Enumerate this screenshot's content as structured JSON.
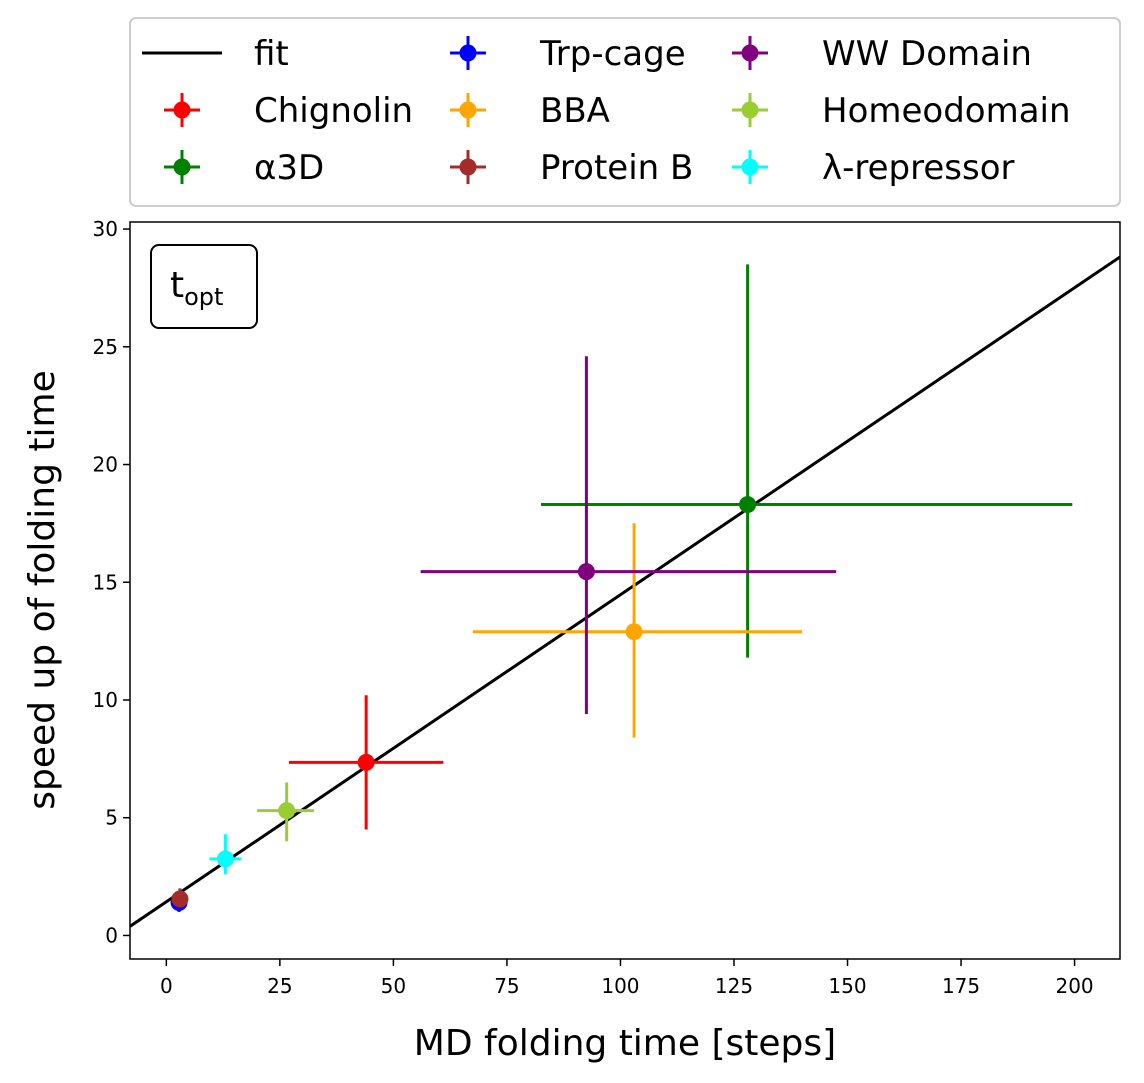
{
  "chart_data": {
    "type": "scatter",
    "title": "",
    "xlabel": "MD folding time [steps]",
    "ylabel": "speed up of folding time",
    "xlim": [
      -8,
      210
    ],
    "ylim": [
      -1,
      30.3
    ],
    "xticks": [
      0,
      25,
      50,
      75,
      100,
      125,
      150,
      175,
      200
    ],
    "yticks": [
      0,
      5,
      10,
      15,
      20,
      25,
      30
    ],
    "grid": false,
    "legend_position": "top, outside plot, 3 columns",
    "annotation": {
      "main": "t",
      "sub": "opt",
      "position": "top-left"
    },
    "fit": {
      "name": "fit",
      "color": "#000000",
      "slope": 0.1304,
      "intercept": 1.43
    },
    "series": [
      {
        "name": "Chignolin",
        "color": "#ff0000",
        "x": 44.0,
        "y": 7.35,
        "xerr": [
          27,
          61
        ],
        "yerr": [
          4.5,
          10.2
        ]
      },
      {
        "name": "α3D",
        "color": "#008000",
        "x": 128.0,
        "y": 18.3,
        "xerr": [
          82.5,
          199.5
        ],
        "yerr": [
          11.8,
          28.5
        ]
      },
      {
        "name": "Trp-cage",
        "color": "#0000ff",
        "x": 2.8,
        "y": 1.4,
        "xerr": [
          2.6,
          3.0
        ],
        "yerr": [
          1.0,
          1.8
        ]
      },
      {
        "name": "BBA",
        "color": "#ffa500",
        "x": 103.0,
        "y": 12.9,
        "xerr": [
          67.5,
          140
        ],
        "yerr": [
          8.4,
          17.5
        ]
      },
      {
        "name": "Protein B",
        "color": "#a52a2a",
        "x": 3.0,
        "y": 1.55,
        "xerr": [
          2.4,
          3.6
        ],
        "yerr": [
          1.2,
          2.0
        ]
      },
      {
        "name": "WW Domain",
        "color": "#800080",
        "x": 92.5,
        "y": 15.45,
        "xerr": [
          56,
          147.5
        ],
        "yerr": [
          9.4,
          24.6
        ]
      },
      {
        "name": "Homeodomain",
        "color": "#9acd32",
        "x": 26.5,
        "y": 5.3,
        "xerr": [
          20,
          32.5
        ],
        "yerr": [
          4.0,
          6.5
        ]
      },
      {
        "name": "λ-repressor",
        "color": "#00ffff",
        "x": 13.0,
        "y": 3.25,
        "xerr": [
          9.5,
          16.5
        ],
        "yerr": [
          2.6,
          4.3
        ]
      }
    ],
    "legend_order": [
      "fit",
      "Chignolin",
      "α3D",
      "Trp-cage",
      "BBA",
      "Protein B",
      "WW Domain",
      "Homeodomain",
      "λ-repressor"
    ]
  }
}
